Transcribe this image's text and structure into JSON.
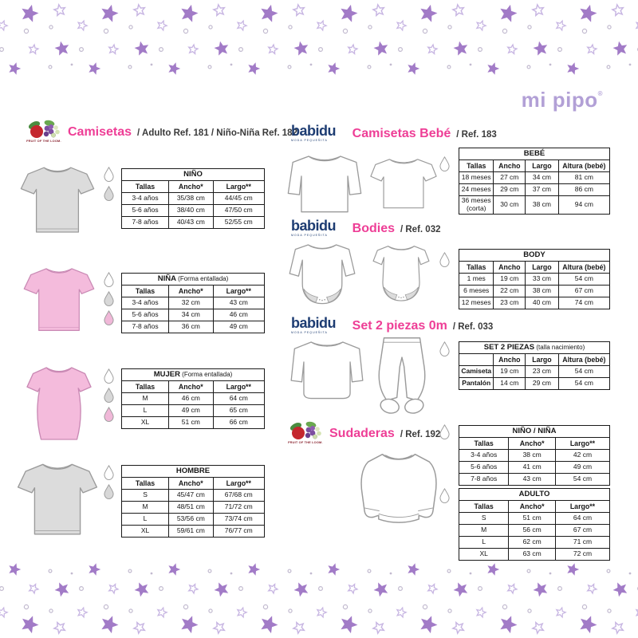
{
  "brand": {
    "logo_text": "mi pipo",
    "registered": "®"
  },
  "fruit_logo_text": "FRUIT OF THE LOOM.",
  "babidu": {
    "name": "babidu",
    "tagline": "MODA PEQUEÑITA"
  },
  "colors": {
    "accent": "#ee3e96",
    "navy": "#1d3c72",
    "logo_purple": "#b2a0d6",
    "star_fill": "#a27bc7",
    "star_outline": "#c7b5e2",
    "dot_gray": "#c2bacf",
    "tee_gray": "#dcdcdc",
    "tee_pink": "#f4bbdc",
    "pink_line": "#c989b4",
    "garment_line": "#9b9b9b",
    "drop_white": "#ffffff",
    "drop_gray": "#d8d8d8",
    "drop_pink": "#f0b8d8"
  },
  "sections": {
    "camisetas": {
      "title": "Camisetas",
      "ref": "/ Adulto Ref. 181 / Niño-Niña Ref. 182"
    },
    "camisetas_bebe": {
      "title": "Camisetas Bebé",
      "ref": "/ Ref. 183"
    },
    "bodies": {
      "title": "Bodies",
      "ref": "/ Ref. 032"
    },
    "set2": {
      "title": "Set 2 piezas 0m",
      "ref": "/ Ref. 033"
    },
    "sudaderas": {
      "title": "Sudaderas",
      "ref": "/ Ref. 192"
    }
  },
  "tables": {
    "nino": {
      "title": "NIÑO",
      "note": "",
      "headers": [
        "Tallas",
        "Ancho*",
        "Largo**"
      ],
      "rows": [
        [
          "3-4 años",
          "35/38 cm",
          "44/45 cm"
        ],
        [
          "5-6 años",
          "38/40 cm",
          "47/50 cm"
        ],
        [
          "7-8 años",
          "40/43 cm",
          "52/55 cm"
        ]
      ],
      "drops": [
        "white",
        "gray"
      ]
    },
    "nina": {
      "title": "NIÑA",
      "note": "(Forma entallada)",
      "headers": [
        "Tallas",
        "Ancho*",
        "Largo**"
      ],
      "rows": [
        [
          "3-4 años",
          "32 cm",
          "43 cm"
        ],
        [
          "5-6 años",
          "34 cm",
          "46 cm"
        ],
        [
          "7-8 años",
          "36 cm",
          "49 cm"
        ]
      ],
      "drops": [
        "white",
        "gray",
        "pink"
      ]
    },
    "mujer": {
      "title": "MUJER",
      "note": "(Forma entallada)",
      "headers": [
        "Tallas",
        "Ancho*",
        "Largo**"
      ],
      "rows": [
        [
          "M",
          "46 cm",
          "64 cm"
        ],
        [
          "L",
          "49 cm",
          "65 cm"
        ],
        [
          "XL",
          "51 cm",
          "66 cm"
        ]
      ],
      "drops": [
        "white",
        "gray",
        "pink"
      ]
    },
    "hombre": {
      "title": "HOMBRE",
      "note": "",
      "headers": [
        "Tallas",
        "Ancho*",
        "Largo**"
      ],
      "rows": [
        [
          "S",
          "45/47 cm",
          "67/68 cm"
        ],
        [
          "M",
          "48/51 cm",
          "71/72 cm"
        ],
        [
          "L",
          "53/56 cm",
          "73/74 cm"
        ],
        [
          "XL",
          "59/61 cm",
          "76/77 cm"
        ]
      ],
      "drops": [
        "white",
        "gray"
      ]
    },
    "bebe": {
      "title": "BEBÉ",
      "note": "",
      "headers": [
        "Tallas",
        "Ancho",
        "Largo",
        "Altura (bebé)"
      ],
      "rows": [
        [
          "18 meses",
          "27 cm",
          "34 cm",
          "81 cm"
        ],
        [
          "24 meses",
          "29 cm",
          "37 cm",
          "86 cm"
        ],
        [
          "36 meses\n(corta)",
          "30 cm",
          "38 cm",
          "94 cm"
        ]
      ],
      "drops": [
        "white"
      ]
    },
    "body": {
      "title": "BODY",
      "note": "",
      "headers": [
        "Tallas",
        "Ancho",
        "Largo",
        "Altura (bebé)"
      ],
      "rows": [
        [
          "1 mes",
          "19 cm",
          "33 cm",
          "54 cm"
        ],
        [
          "6 meses",
          "22 cm",
          "38 cm",
          "67 cm"
        ],
        [
          "12 meses",
          "23 cm",
          "40 cm",
          "74 cm"
        ]
      ],
      "drops": [
        "white"
      ]
    },
    "set": {
      "title": "SET 2 PIEZAS",
      "note": "(talla nacimiento)",
      "headers": [
        "",
        "Ancho",
        "Largo",
        "Altura (bebé)"
      ],
      "bold_first": true,
      "rows": [
        [
          "Camiseta",
          "19 cm",
          "23 cm",
          "54 cm"
        ],
        [
          "Pantalón",
          "14 cm",
          "29 cm",
          "54 cm"
        ]
      ],
      "drops": [
        "white"
      ]
    },
    "nino_nina": {
      "title": "NIÑO / NIÑA",
      "note": "",
      "headers": [
        "Tallas",
        "Ancho*",
        "Largo**"
      ],
      "rows": [
        [
          "3-4 años",
          "38 cm",
          "42 cm"
        ],
        [
          "5-6 años",
          "41 cm",
          "49 cm"
        ],
        [
          "7-8 años",
          "43 cm",
          "54 cm"
        ]
      ],
      "drops": [
        "white"
      ]
    },
    "adulto": {
      "title": "ADULTO",
      "note": "",
      "headers": [
        "Tallas",
        "Ancho*",
        "Largo**"
      ],
      "rows": [
        [
          "S",
          "51 cm",
          "64 cm"
        ],
        [
          "M",
          "56 cm",
          "67 cm"
        ],
        [
          "L",
          "62 cm",
          "71 cm"
        ],
        [
          "XL",
          "63 cm",
          "72 cm"
        ]
      ],
      "drops": [
        "white"
      ]
    }
  }
}
